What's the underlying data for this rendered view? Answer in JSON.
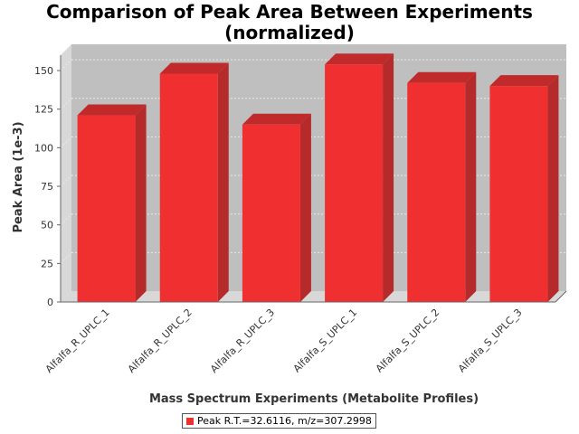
{
  "chart_data": {
    "type": "bar",
    "title_lines": [
      "Comparison of Peak Area Between Experiments",
      "(normalized)"
    ],
    "xlabel": "Mass Spectrum Experiments (Metabolite Profiles)",
    "ylabel": "Peak Area (1e-3)",
    "categories": [
      "Alfalfa_R_UPLC_1",
      "Alfalfa_R_UPLC_2",
      "Alfalfa_R_UPLC_3",
      "Alfalfa_S_UPLC_1",
      "Alfalfa_S_UPLC_2",
      "Alfalfa_S_UPLC_3"
    ],
    "series": [
      {
        "name": "Peak R.T.=32.6116, m/z=307.2998",
        "values": [
          121,
          148,
          115,
          154,
          142,
          140
        ]
      }
    ],
    "ylim": [
      0,
      160
    ],
    "yticks": [
      0,
      25,
      50,
      75,
      100,
      125,
      150
    ],
    "grid": true,
    "legend_position": "bottom",
    "colors": {
      "bar_front": "#f03030",
      "bar_side": "#b52a2a",
      "bar_top": "#c02a2a",
      "plot_back": "#bfbfbf",
      "plot_wall": "#d8d8d8",
      "grid": "#e8e8e8"
    }
  }
}
